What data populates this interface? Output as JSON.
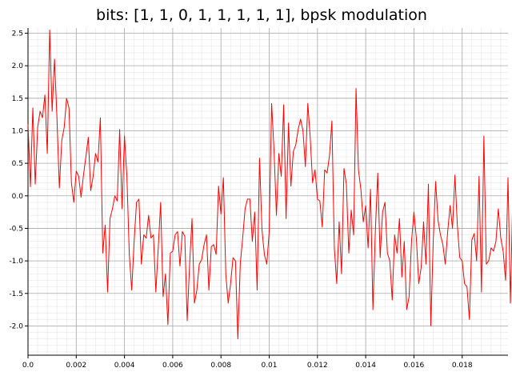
{
  "chart_data": {
    "type": "line",
    "title": "bits: [1, 1, 0, 1, 1, 1, 1, 1], bpsk modulation",
    "xlabel": "",
    "ylabel": "",
    "xlim": [
      0,
      0.0199
    ],
    "ylim": [
      -2.45,
      2.58
    ],
    "x_ticks": [
      0,
      0.002,
      0.004,
      0.006,
      0.008,
      0.01,
      0.012,
      0.014,
      0.016,
      0.018
    ],
    "x_tick_labels": [
      "0.0",
      "0.002",
      "0.004",
      "0.006",
      "0.008",
      "0.01",
      "0.012",
      "0.014",
      "0.016",
      "0.018"
    ],
    "y_ticks": [
      2.5,
      2.0,
      1.5,
      1.0,
      0.5,
      0.0,
      -0.5,
      -1.0,
      -1.5,
      -2.0
    ],
    "y_tick_labels": [
      "2.5",
      "2.0",
      "1.5",
      "1.0",
      "0.5",
      "0.0",
      "-0.5",
      "-1.0",
      "-1.5",
      "-2.0"
    ],
    "grid": true,
    "line_color": "#ff0000",
    "x_step": 0.0001,
    "y": [
      1.1,
      0.14,
      1.35,
      0.18,
      1.05,
      1.3,
      1.2,
      1.55,
      0.65,
      2.55,
      1.3,
      2.1,
      1.2,
      0.12,
      0.85,
      1.05,
      1.5,
      1.35,
      0.2,
      -0.1,
      0.38,
      0.3,
      -0.02,
      0.32,
      0.6,
      0.9,
      0.08,
      0.3,
      0.65,
      0.52,
      1.2,
      -0.88,
      -0.45,
      -1.48,
      -0.35,
      -0.2,
      0.0,
      -0.08,
      1.02,
      -0.2,
      0.92,
      0.3,
      -0.9,
      -1.45,
      -0.7,
      -0.1,
      -0.05,
      -1.05,
      -0.6,
      -0.65,
      -0.3,
      -0.65,
      -0.6,
      -1.48,
      -0.8,
      -0.1,
      -1.55,
      -1.2,
      -1.98,
      -0.88,
      -0.85,
      -0.6,
      -0.55,
      -1.08,
      -0.55,
      -0.62,
      -1.92,
      -1.05,
      -0.35,
      -1.65,
      -1.45,
      -1.05,
      -0.98,
      -0.75,
      -0.6,
      -1.45,
      -0.78,
      -0.75,
      -0.9,
      0.15,
      -0.28,
      0.28,
      -1.2,
      -1.65,
      -1.35,
      -0.95,
      -1.0,
      -2.2,
      -1.05,
      -0.65,
      -0.2,
      -0.05,
      -0.05,
      -0.7,
      -0.25,
      -1.45,
      0.58,
      -0.52,
      -0.9,
      -1.05,
      -0.55,
      1.42,
      0.7,
      -0.3,
      0.65,
      0.3,
      1.4,
      -0.35,
      1.12,
      0.15,
      0.68,
      0.78,
      1.02,
      1.18,
      1.0,
      0.45,
      1.42,
      0.9,
      0.2,
      0.4,
      -0.05,
      -0.08,
      -0.48,
      0.4,
      0.35,
      0.62,
      1.15,
      -0.8,
      -1.35,
      -0.4,
      -1.2,
      0.42,
      0.18,
      -0.88,
      -0.22,
      -0.6,
      1.65,
      0.4,
      0.1,
      -0.4,
      -0.15,
      -0.8,
      0.1,
      -1.75,
      -0.55,
      0.35,
      -0.95,
      -0.25,
      -0.1,
      -0.88,
      -1.0,
      -1.6,
      -0.6,
      -0.88,
      -0.35,
      -1.25,
      -0.7,
      -1.75,
      -1.55,
      -0.7,
      -0.25,
      -0.65,
      -1.35,
      -1.1,
      -0.4,
      -1.05,
      0.18,
      -2.0,
      -0.7,
      0.22,
      -0.38,
      -0.6,
      -0.75,
      -1.05,
      -0.55,
      -0.15,
      -0.5,
      0.32,
      -0.45,
      -0.95,
      -1.0,
      -1.35,
      -1.4,
      -1.9,
      -0.68,
      -0.58,
      -1.0,
      0.3,
      -1.48,
      0.92,
      -1.05,
      -1.0,
      -0.8,
      -0.85,
      -0.7,
      -0.2,
      -0.65,
      -0.85,
      -1.3,
      0.28,
      -1.65,
      0.05,
      -1.25,
      -1.48,
      -0.7,
      -0.1,
      -1.25,
      -1.4,
      -0.55,
      0.62,
      -1.05,
      -1.15,
      -1.0,
      -1.35,
      -0.9,
      -1.0,
      -1.4,
      -1.2,
      -1.4,
      -0.78,
      -1.0,
      -1.05,
      -0.98,
      -0.5,
      -0.4,
      -0.38,
      -0.1,
      0.25,
      -0.25,
      0.3,
      0.75,
      1.8,
      0.1,
      -0.05,
      1.75,
      1.78,
      -0.7,
      1.32,
      1.72,
      0.2,
      0.7,
      1.22,
      0.85,
      -0.05,
      1.15
    ]
  }
}
